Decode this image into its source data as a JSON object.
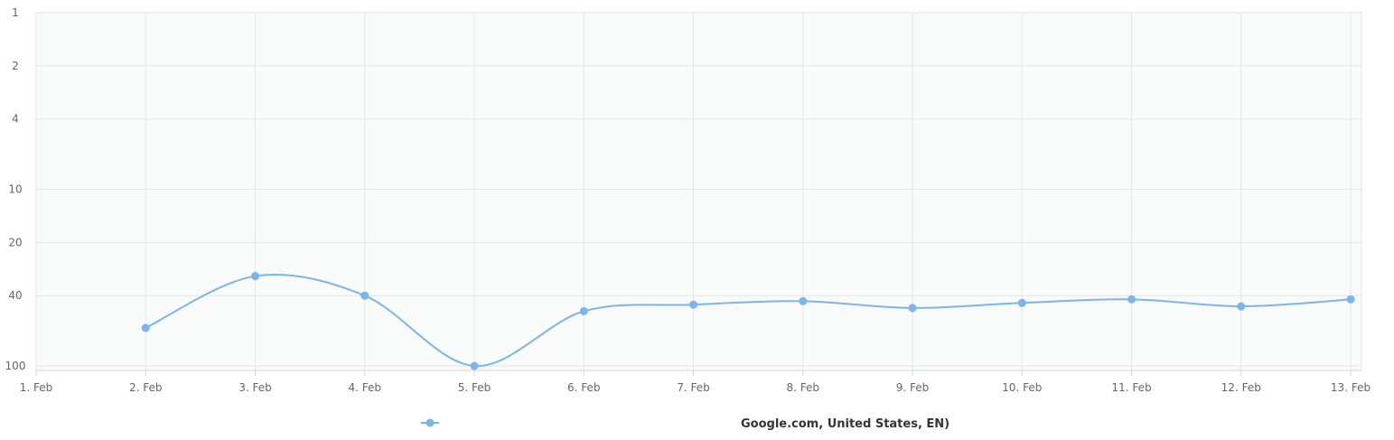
{
  "chart_data": {
    "type": "line",
    "x": [
      "2. Feb",
      "3. Feb",
      "4. Feb",
      "5. Feb",
      "6. Feb",
      "7. Feb",
      "8. Feb",
      "9. Feb",
      "10. Feb",
      "11. Feb",
      "12. Feb",
      "13. Feb"
    ],
    "x_ticks": [
      "1. Feb",
      "2. Feb",
      "3. Feb",
      "4. Feb",
      "5. Feb",
      "6. Feb",
      "7. Feb",
      "8. Feb",
      "9. Feb",
      "10. Feb",
      "11. Feb",
      "12. Feb",
      "13. Feb"
    ],
    "y_ticks": [
      1,
      2,
      4,
      10,
      20,
      40,
      100
    ],
    "y_scale": "log",
    "y_reversed": true,
    "ylim": [
      1,
      100
    ],
    "grid": true,
    "legend_position": "bottom-center",
    "series": [
      {
        "name": "Google.com, United States, EN)",
        "values": [
          61,
          31,
          40,
          100,
          49,
          45,
          43,
          47,
          44,
          42,
          46,
          42
        ],
        "color": "#7cb5ec"
      }
    ],
    "colors": {
      "plot_background": "#f9fafa",
      "grid": "#e6e6e6",
      "axis": "#ccd6eb"
    }
  }
}
